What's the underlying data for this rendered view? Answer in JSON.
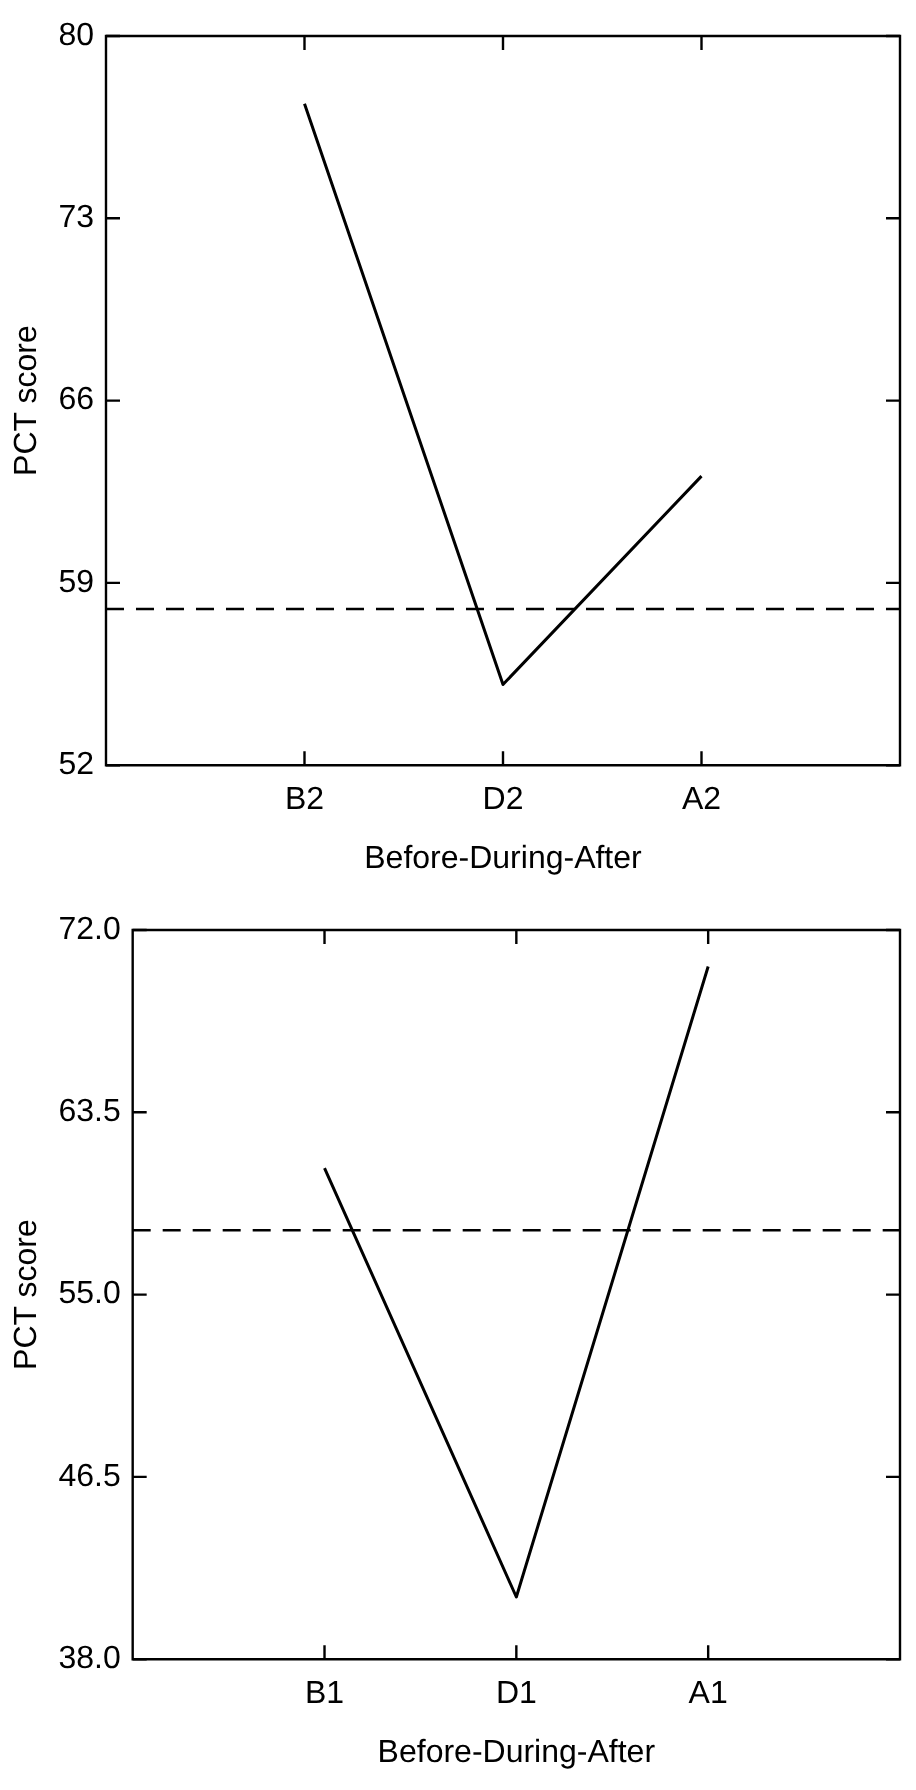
{
  "chart_data": [
    {
      "type": "line",
      "categories": [
        null,
        "B2",
        "D2",
        "A2",
        null
      ],
      "values": [
        null,
        77.4,
        55.1,
        63.1,
        null
      ],
      "color": "#000000",
      "xlabel": "Before-During-After",
      "ylabel": "PCT score",
      "ylim": [
        52,
        80
      ],
      "yticks": [
        52,
        59,
        66,
        73,
        80
      ],
      "grid": false,
      "legend": false,
      "marker": "none",
      "line_style": "solid",
      "ref_lines": [
        {
          "axis": "y",
          "value": 58.0,
          "color": "#000000",
          "line_style": "dashed"
        }
      ]
    },
    {
      "type": "line",
      "categories": [
        null,
        "B1",
        "D1",
        "A1",
        null
      ],
      "values": [
        null,
        60.9,
        40.9,
        70.3,
        null
      ],
      "color": "#000000",
      "xlabel": "Before-During-After",
      "ylabel": "PCT score",
      "ylim": [
        38,
        72
      ],
      "yticks": [
        {
          "value": 38,
          "label": "38.0"
        },
        {
          "value": 46.5,
          "label": "46.5"
        },
        {
          "value": 55,
          "label": "55.0"
        },
        {
          "value": 63.5,
          "label": "63.5"
        },
        {
          "value": 72,
          "label": "72.0"
        }
      ],
      "grid": false,
      "legend": false,
      "marker": "none",
      "line_style": "solid",
      "ref_lines": [
        {
          "axis": "y",
          "value": 58.0,
          "color": "#000000",
          "line_style": "dashed"
        }
      ]
    }
  ]
}
